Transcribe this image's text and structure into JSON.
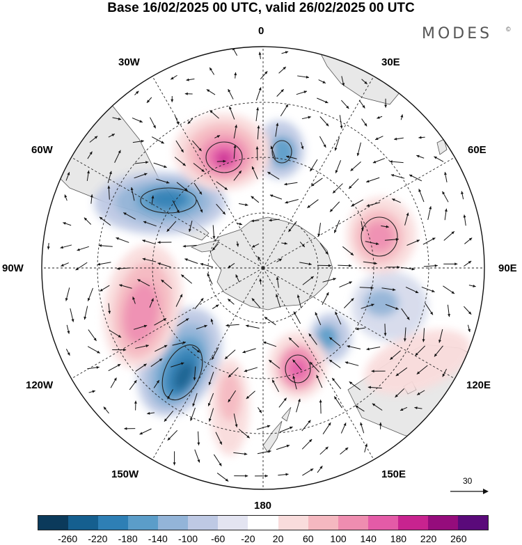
{
  "title": "Base 16/02/2025 00 UTC, valid 26/02/2025 00 UTC",
  "brand": {
    "name": "MODES",
    "mark": "©"
  },
  "longitude_labels": {
    "lon_0": "0",
    "lon_30e": "30E",
    "lon_60e": "60E",
    "lon_90e": "90E",
    "lon_120e": "120E",
    "lon_150e": "150E",
    "lon_180": "180",
    "lon_150w": "150W",
    "lon_120w": "120W",
    "lon_90w": "90W",
    "lon_60w": "60W",
    "lon_30w": "30W"
  },
  "reference_vector": {
    "label": "30"
  },
  "colorbar": {
    "colors": [
      "#0b3a5b",
      "#155f8f",
      "#2e7fb5",
      "#5b9dc9",
      "#93b4d8",
      "#bec9e4",
      "#e3e4f1",
      "#ffffff",
      "#f9dcdc",
      "#f5b8c0",
      "#ef8db0",
      "#e45ba7",
      "#c8238f",
      "#950c7c",
      "#5a0a7a"
    ],
    "ticks": [
      "-260",
      "-220",
      "-180",
      "-140",
      "-100",
      "-60",
      "-20",
      "20",
      "60",
      "100",
      "140",
      "180",
      "220",
      "260"
    ]
  },
  "colors": {
    "land": "#e8e8e8",
    "coast": "#555555",
    "grid": "#222222"
  }
}
